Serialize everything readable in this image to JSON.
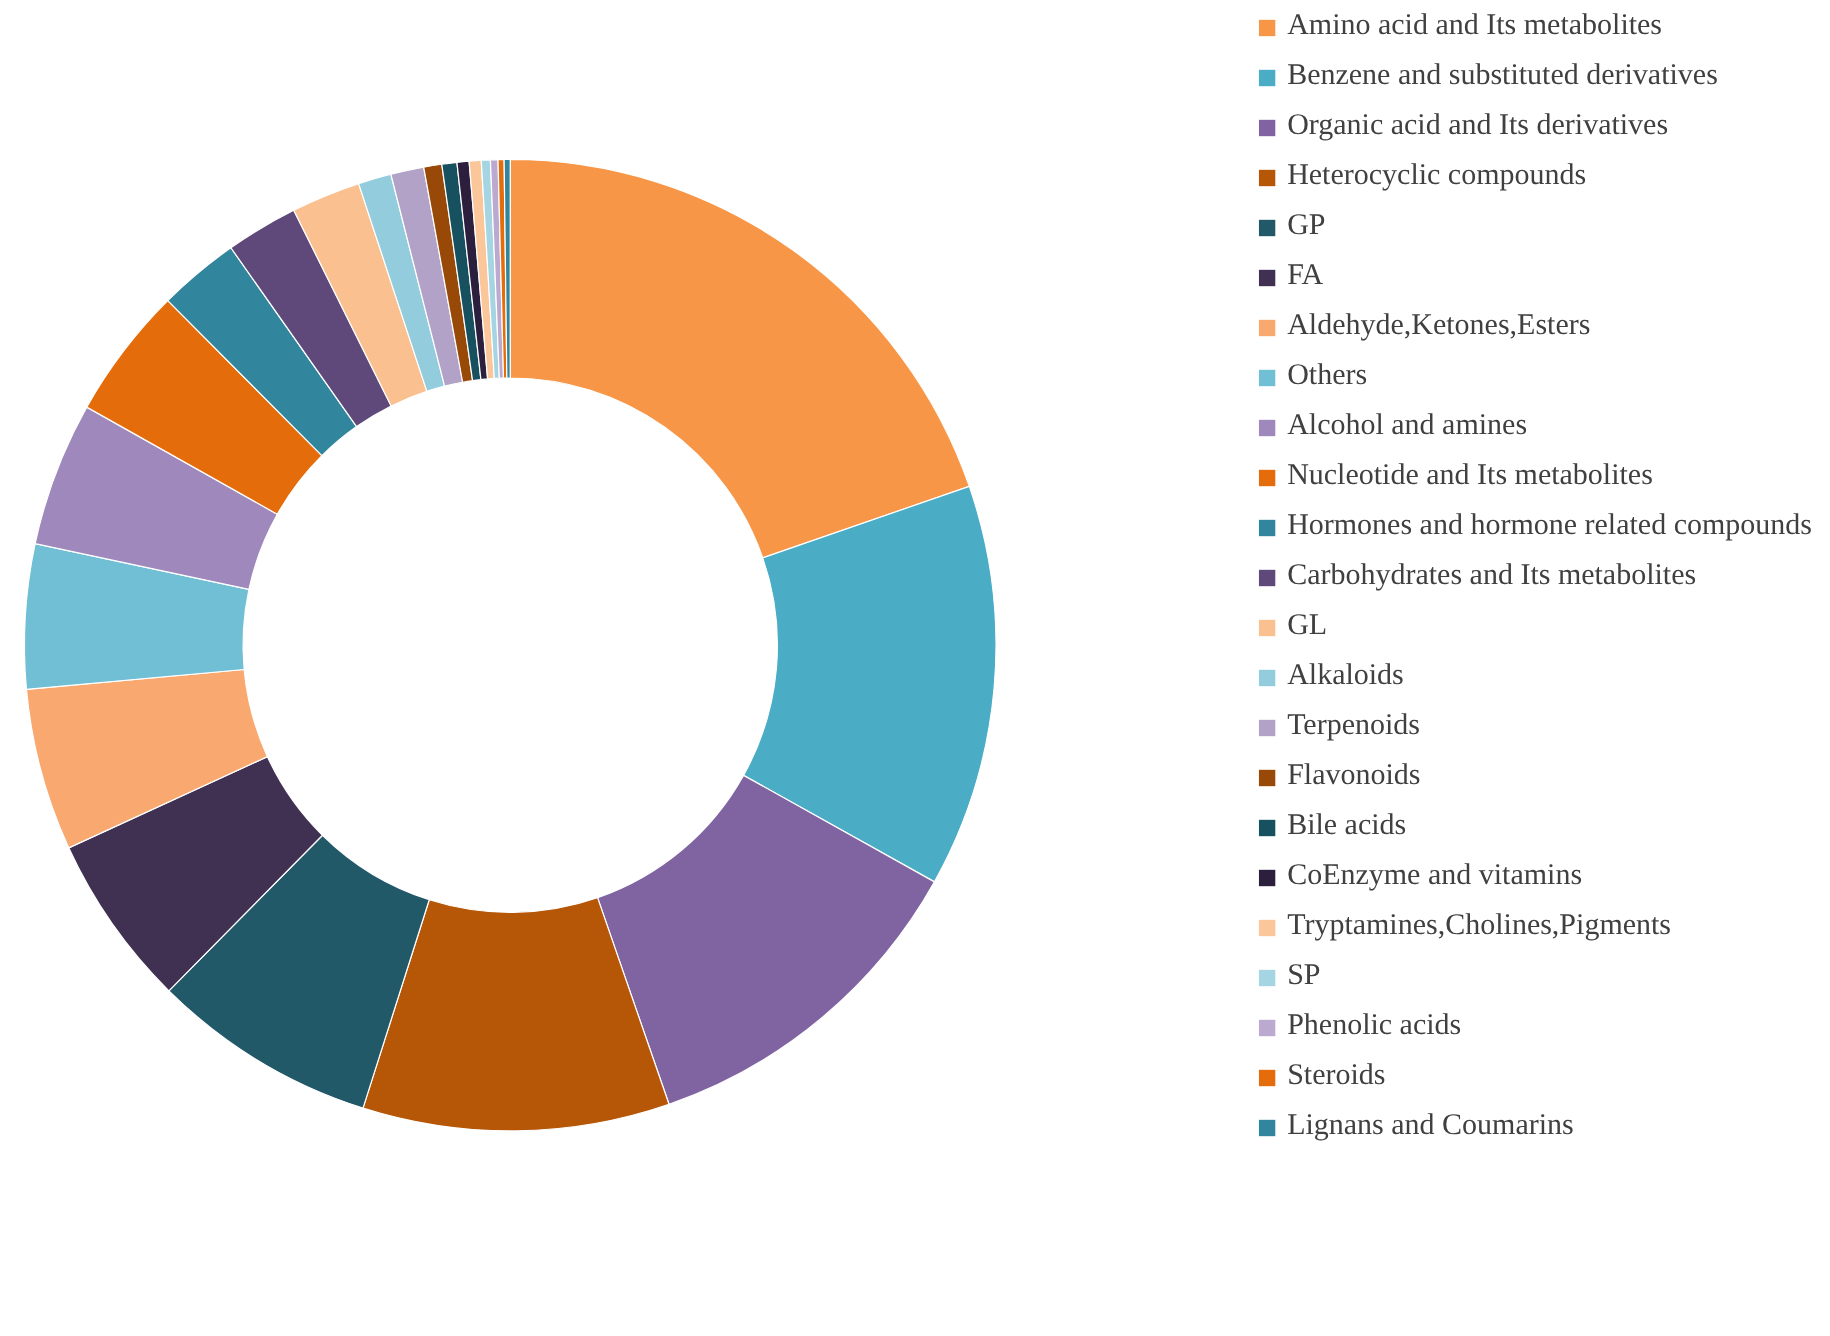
{
  "chart_data": {
    "type": "donut",
    "legend": "right",
    "categories": [
      "Amino acid and Its metabolites",
      "Benzene and substituted derivatives",
      "Organic acid and Its derivatives",
      "Heterocyclic compounds",
      "GP",
      "FA",
      "Aldehyde,Ketones,Esters",
      "Others",
      "Alcohol and amines",
      "Nucleotide and Its metabolites",
      "Hormones and hormone related compounds",
      "Carbohydrates and Its metabolites",
      "GL",
      "Alkaloids",
      "Terpenoids",
      "Flavonoids",
      "Bile acids",
      "CoEnzyme and vitamins",
      "Tryptamines,Cholines,Pigments",
      "SP",
      "Phenolic acids",
      "Steroids",
      "Lignans and Coumarins"
    ],
    "values": [
      19.7,
      13.4,
      11.6,
      10.2,
      7.5,
      5.75,
      5.4,
      4.8,
      4.8,
      4.4,
      2.7,
      2.4,
      2.3,
      1.1,
      1.1,
      0.6,
      0.5,
      0.4,
      0.4,
      0.3,
      0.25,
      0.2,
      0.2
    ],
    "colors": [
      "#f79646",
      "#4bacc6",
      "#8064a2",
      "#b65708",
      "#215968",
      "#403152",
      "#f9a870",
      "#71bfd4",
      "#9e88bc",
      "#e46c0a",
      "#31859c",
      "#5f497a",
      "#fac090",
      "#93cddd",
      "#b3a2c7",
      "#984807",
      "#17505e",
      "#2c1f3d",
      "#fbc79a",
      "#a5d5e2",
      "#bba9d0",
      "#e46c0a",
      "#31859c"
    ]
  }
}
